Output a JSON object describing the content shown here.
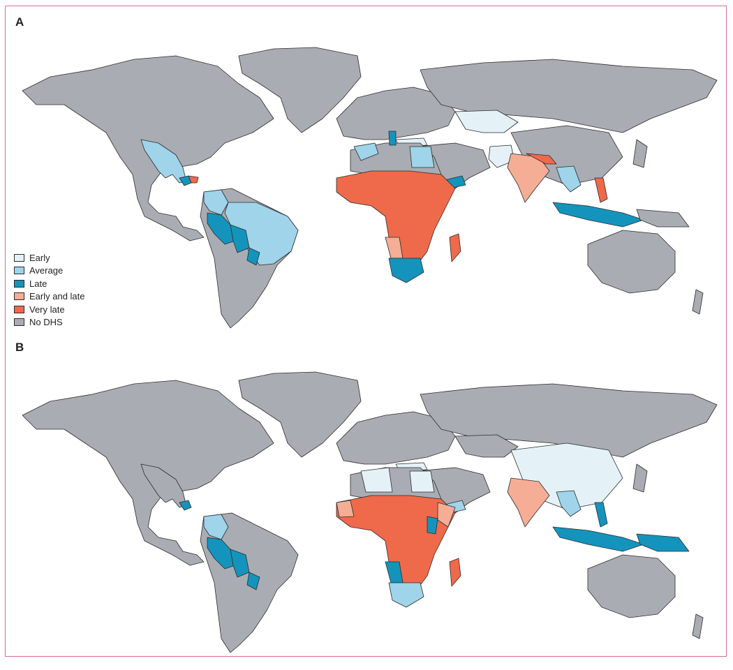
{
  "panels": [
    {
      "label": "A"
    },
    {
      "label": "B"
    }
  ],
  "legend": [
    {
      "label": "Early",
      "color": "#e4f2f8"
    },
    {
      "label": "Average",
      "color": "#9fd4ea"
    },
    {
      "label": "Late",
      "color": "#1494bd"
    },
    {
      "label": "Early and late",
      "color": "#f5ad96"
    },
    {
      "label": "Very late",
      "color": "#ef6a4a"
    },
    {
      "label": "No DHS",
      "color": "#a9adb3"
    }
  ],
  "panel_a_categories": {
    "Early": [
      "Kazakhstan",
      "Uzbekistan",
      "Turkmenistan",
      "Kyrgyzstan",
      "Turkey",
      "Jordan",
      "Azerbaijan",
      "Armenia",
      "Afghanistan"
    ],
    "Average": [
      "Mexico",
      "Colombia",
      "Brazil",
      "Egypt",
      "Morocco",
      "Cambodia",
      "Vietnam",
      "Tajikistan",
      "Pakistan"
    ],
    "Late": [
      "Guatemala",
      "Peru",
      "Bolivia",
      "Paraguay",
      "South Africa",
      "Yemen",
      "Tunisia",
      "Indonesia",
      "Sri Lanka",
      "Timor-Leste"
    ],
    "Early and late": [
      "India",
      "Namibia",
      "Zimbabwe",
      "Mozambique"
    ],
    "Very late": [
      "Sub-Saharan Africa",
      "Madagascar",
      "Philippines",
      "Nepal",
      "Bangladesh",
      "Honduras"
    ]
  },
  "panel_b_categories": {
    "Early": [
      "China",
      "Mongolia",
      "Egypt",
      "Algeria",
      "Turkey"
    ],
    "Average": [
      "Colombia",
      "Lesotho",
      "South Africa",
      "Yemen",
      "Cambodia"
    ],
    "Late": [
      "Peru",
      "Bolivia",
      "Paraguay",
      "Guatemala",
      "Namibia",
      "Kenya",
      "Indonesia",
      "Philippines",
      "Papua New Guinea"
    ],
    "Early and late": [
      "India",
      "Senegal",
      "Somalia"
    ],
    "Very late": [
      "Sub-Saharan Africa",
      "Madagascar"
    ]
  }
}
